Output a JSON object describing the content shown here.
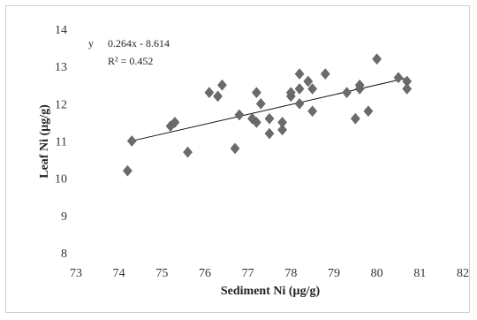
{
  "chart_data": {
    "type": "scatter",
    "xlabel": "Sediment Ni (µg/g)",
    "ylabel": "Leaf Ni (µg/g)",
    "xlim": [
      73,
      82
    ],
    "ylim": [
      8,
      14
    ],
    "x_ticks": [
      "73",
      "74",
      "75",
      "76",
      "77",
      "78",
      "79",
      "80",
      "81",
      "82"
    ],
    "y_ticks": [
      "8",
      "9",
      "10",
      "11",
      "12",
      "13",
      "14"
    ],
    "grid": false,
    "marker": "diamond",
    "marker_color": "#6b6b6b",
    "trendline": {
      "slope": 0.264,
      "intercept": -8.614,
      "x_range": [
        74.3,
        80.7
      ]
    },
    "annotation": {
      "equation_prefix": "y",
      "equation": "0.264x - 8.614",
      "r_squared": "R² = 0.452"
    },
    "points": [
      {
        "x": 74.2,
        "y": 10.2
      },
      {
        "x": 74.3,
        "y": 11.0
      },
      {
        "x": 75.2,
        "y": 11.4
      },
      {
        "x": 75.3,
        "y": 11.5
      },
      {
        "x": 75.6,
        "y": 10.7
      },
      {
        "x": 76.1,
        "y": 12.3
      },
      {
        "x": 76.3,
        "y": 12.2
      },
      {
        "x": 76.4,
        "y": 12.5
      },
      {
        "x": 76.7,
        "y": 10.8
      },
      {
        "x": 76.8,
        "y": 11.7
      },
      {
        "x": 77.1,
        "y": 11.6
      },
      {
        "x": 77.2,
        "y": 11.5
      },
      {
        "x": 77.2,
        "y": 12.3
      },
      {
        "x": 77.3,
        "y": 12.0
      },
      {
        "x": 77.5,
        "y": 11.2
      },
      {
        "x": 77.5,
        "y": 11.6
      },
      {
        "x": 77.8,
        "y": 11.3
      },
      {
        "x": 77.8,
        "y": 11.5
      },
      {
        "x": 78.0,
        "y": 12.2
      },
      {
        "x": 78.0,
        "y": 12.3
      },
      {
        "x": 78.2,
        "y": 12.0
      },
      {
        "x": 78.2,
        "y": 12.4
      },
      {
        "x": 78.2,
        "y": 12.8
      },
      {
        "x": 78.4,
        "y": 12.6
      },
      {
        "x": 78.5,
        "y": 12.4
      },
      {
        "x": 78.5,
        "y": 11.8
      },
      {
        "x": 78.8,
        "y": 12.8
      },
      {
        "x": 79.3,
        "y": 12.3
      },
      {
        "x": 79.5,
        "y": 11.6
      },
      {
        "x": 79.6,
        "y": 12.4
      },
      {
        "x": 79.6,
        "y": 12.5
      },
      {
        "x": 79.8,
        "y": 11.8
      },
      {
        "x": 80.0,
        "y": 13.2
      },
      {
        "x": 80.5,
        "y": 12.7
      },
      {
        "x": 80.7,
        "y": 12.6
      },
      {
        "x": 80.7,
        "y": 12.4
      }
    ]
  }
}
